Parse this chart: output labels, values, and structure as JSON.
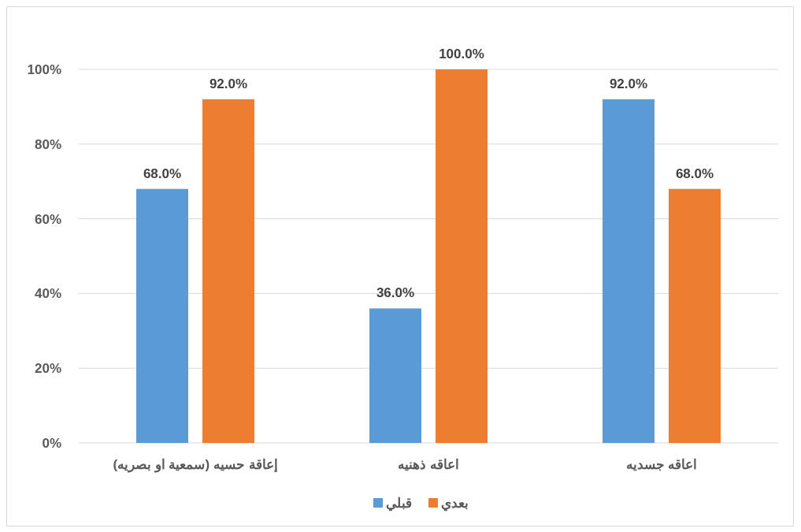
{
  "chart_data": {
    "type": "bar",
    "categories": [
      "إعاقة حسيه (سمعية او بصريه)",
      "اعاقه ذهنيه",
      "اعاقه جسديه"
    ],
    "series": [
      {
        "name": "قبلي",
        "color": "#5b9bd5",
        "values": [
          68,
          36,
          92
        ],
        "value_labels": [
          "68.0%",
          "36.0%",
          "92.0%"
        ]
      },
      {
        "name": "بعدي",
        "color": "#ed7d31",
        "values": [
          92,
          100,
          68
        ],
        "value_labels": [
          "92.0%",
          "100.0%",
          "68.0%"
        ]
      }
    ],
    "ylim": [
      0,
      100
    ],
    "yticks": [
      {
        "value": 0,
        "label": "0%"
      },
      {
        "value": 20,
        "label": "20%"
      },
      {
        "value": 40,
        "label": "40%"
      },
      {
        "value": 60,
        "label": "60%"
      },
      {
        "value": 80,
        "label": "80%"
      },
      {
        "value": 100,
        "label": "100%"
      }
    ],
    "grid": "y",
    "legend": "bottom"
  }
}
